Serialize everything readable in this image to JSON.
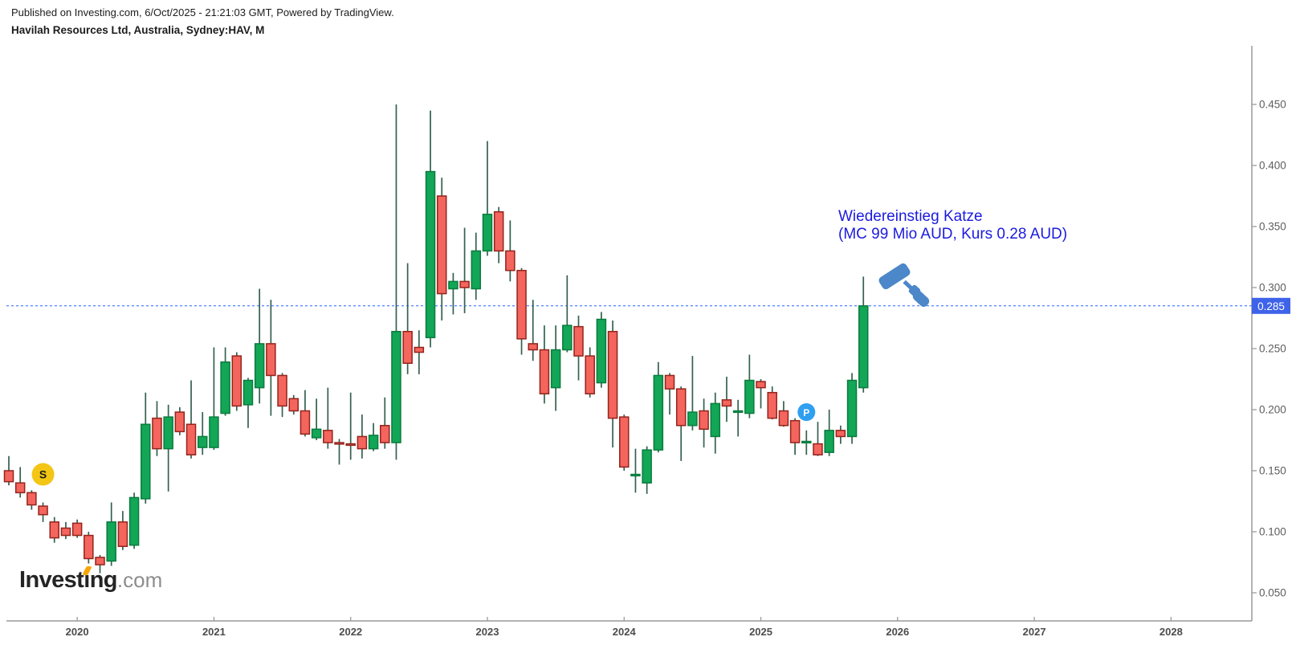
{
  "header": {
    "published_line": "Published on Investing.com, 6/Oct/2025 - 21:21:03 GMT, Powered by TradingView.",
    "instrument_line": "Havilah Resources Ltd, Australia, Sydney:HAV, M"
  },
  "logo": {
    "part1": "Invest",
    "dotless_i": "ı",
    "part2": "ng",
    "suffix": ".com",
    "accent_color": "#f7a600"
  },
  "annotation": {
    "line1": "Wiedereinstieg Katze",
    "line2": "(MC 99 Mio AUD, Kurs 0.28 AUD)",
    "color": "#1b1be0",
    "gavel_icon_color": "#4b87c9"
  },
  "price_line": {
    "value": "0.285",
    "price": 0.285,
    "line_color": "#2962ff",
    "label_bg": "#3e63e9",
    "label_fg": "#ffffff"
  },
  "markers": [
    {
      "label": "S",
      "month": "2019-10",
      "price": 0.147,
      "bg": "#f3c515",
      "fg": "#1c1c1c",
      "r": 14
    },
    {
      "label": "P",
      "month": "2025-05",
      "price": 0.198,
      "bg": "#2f9ff0",
      "fg": "#ffffff",
      "r": 11
    }
  ],
  "axes": {
    "price_ticks": [
      "0.450",
      "0.400",
      "0.350",
      "0.300",
      "0.250",
      "0.200",
      "0.150",
      "0.100",
      "0.050"
    ],
    "years": [
      "2020",
      "2021",
      "2022",
      "2023",
      "2024",
      "2025",
      "2026",
      "2027",
      "2028"
    ],
    "tick_color": "#5e5e5e",
    "year_color": "#4c4c4c",
    "axis_line_color": "#9a9a9a"
  },
  "chart_data": {
    "type": "candlestick",
    "title": "Havilah Resources Ltd",
    "symbol": "Sydney:HAV",
    "interval": "M",
    "currency": "AUD",
    "ylim": [
      0.027,
      0.496
    ],
    "xrange": [
      "2019-07",
      "2028-12"
    ],
    "grid": false,
    "last_close": 0.285,
    "colors": {
      "up_fill": "#12a656",
      "up_border": "#0a7c3f",
      "down_fill": "#f4655d",
      "down_border": "#93241c",
      "wick": "#34614f"
    },
    "candles": [
      {
        "t": "2019-07",
        "o": 0.15,
        "h": 0.162,
        "l": 0.138,
        "c": 0.141
      },
      {
        "t": "2019-08",
        "o": 0.14,
        "h": 0.153,
        "l": 0.128,
        "c": 0.132
      },
      {
        "t": "2019-09",
        "o": 0.132,
        "h": 0.134,
        "l": 0.118,
        "c": 0.122
      },
      {
        "t": "2019-10",
        "o": 0.121,
        "h": 0.124,
        "l": 0.108,
        "c": 0.114
      },
      {
        "t": "2019-11",
        "o": 0.108,
        "h": 0.112,
        "l": 0.091,
        "c": 0.095
      },
      {
        "t": "2019-12",
        "o": 0.103,
        "h": 0.108,
        "l": 0.094,
        "c": 0.097
      },
      {
        "t": "2020-01",
        "o": 0.107,
        "h": 0.11,
        "l": 0.095,
        "c": 0.097
      },
      {
        "t": "2020-02",
        "o": 0.097,
        "h": 0.1,
        "l": 0.074,
        "c": 0.078
      },
      {
        "t": "2020-03",
        "o": 0.079,
        "h": 0.081,
        "l": 0.066,
        "c": 0.073
      },
      {
        "t": "2020-04",
        "o": 0.076,
        "h": 0.124,
        "l": 0.072,
        "c": 0.108
      },
      {
        "t": "2020-05",
        "o": 0.108,
        "h": 0.117,
        "l": 0.085,
        "c": 0.088
      },
      {
        "t": "2020-06",
        "o": 0.089,
        "h": 0.132,
        "l": 0.086,
        "c": 0.128
      },
      {
        "t": "2020-07",
        "o": 0.127,
        "h": 0.214,
        "l": 0.123,
        "c": 0.188
      },
      {
        "t": "2020-08",
        "o": 0.193,
        "h": 0.207,
        "l": 0.162,
        "c": 0.168
      },
      {
        "t": "2020-09",
        "o": 0.168,
        "h": 0.204,
        "l": 0.133,
        "c": 0.194
      },
      {
        "t": "2020-10",
        "o": 0.198,
        "h": 0.202,
        "l": 0.179,
        "c": 0.182
      },
      {
        "t": "2020-11",
        "o": 0.188,
        "h": 0.224,
        "l": 0.16,
        "c": 0.163
      },
      {
        "t": "2020-12",
        "o": 0.169,
        "h": 0.198,
        "l": 0.163,
        "c": 0.178
      },
      {
        "t": "2021-01",
        "o": 0.169,
        "h": 0.251,
        "l": 0.167,
        "c": 0.194
      },
      {
        "t": "2021-02",
        "o": 0.197,
        "h": 0.251,
        "l": 0.195,
        "c": 0.239
      },
      {
        "t": "2021-03",
        "o": 0.244,
        "h": 0.247,
        "l": 0.199,
        "c": 0.203
      },
      {
        "t": "2021-04",
        "o": 0.204,
        "h": 0.226,
        "l": 0.185,
        "c": 0.224
      },
      {
        "t": "2021-05",
        "o": 0.218,
        "h": 0.299,
        "l": 0.205,
        "c": 0.254
      },
      {
        "t": "2021-06",
        "o": 0.254,
        "h": 0.29,
        "l": 0.195,
        "c": 0.228
      },
      {
        "t": "2021-07",
        "o": 0.228,
        "h": 0.23,
        "l": 0.194,
        "c": 0.203
      },
      {
        "t": "2021-08",
        "o": 0.209,
        "h": 0.212,
        "l": 0.196,
        "c": 0.199
      },
      {
        "t": "2021-09",
        "o": 0.199,
        "h": 0.216,
        "l": 0.178,
        "c": 0.18
      },
      {
        "t": "2021-10",
        "o": 0.177,
        "h": 0.209,
        "l": 0.175,
        "c": 0.184
      },
      {
        "t": "2021-11",
        "o": 0.183,
        "h": 0.218,
        "l": 0.168,
        "c": 0.173
      },
      {
        "t": "2021-12",
        "o": 0.173,
        "h": 0.176,
        "l": 0.155,
        "c": 0.172
      },
      {
        "t": "2022-01",
        "o": 0.172,
        "h": 0.214,
        "l": 0.159,
        "c": 0.171
      },
      {
        "t": "2022-02",
        "o": 0.178,
        "h": 0.196,
        "l": 0.16,
        "c": 0.168
      },
      {
        "t": "2022-03",
        "o": 0.168,
        "h": 0.189,
        "l": 0.166,
        "c": 0.179
      },
      {
        "t": "2022-04",
        "o": 0.187,
        "h": 0.21,
        "l": 0.168,
        "c": 0.173
      },
      {
        "t": "2022-05",
        "o": 0.173,
        "h": 0.45,
        "l": 0.159,
        "c": 0.264
      },
      {
        "t": "2022-06",
        "o": 0.264,
        "h": 0.32,
        "l": 0.229,
        "c": 0.238
      },
      {
        "t": "2022-07",
        "o": 0.251,
        "h": 0.265,
        "l": 0.229,
        "c": 0.247
      },
      {
        "t": "2022-08",
        "o": 0.259,
        "h": 0.445,
        "l": 0.251,
        "c": 0.395
      },
      {
        "t": "2022-09",
        "o": 0.375,
        "h": 0.39,
        "l": 0.273,
        "c": 0.295
      },
      {
        "t": "2022-10",
        "o": 0.299,
        "h": 0.312,
        "l": 0.278,
        "c": 0.305
      },
      {
        "t": "2022-11",
        "o": 0.305,
        "h": 0.349,
        "l": 0.279,
        "c": 0.3
      },
      {
        "t": "2022-12",
        "o": 0.299,
        "h": 0.345,
        "l": 0.29,
        "c": 0.33
      },
      {
        "t": "2023-01",
        "o": 0.33,
        "h": 0.42,
        "l": 0.326,
        "c": 0.36
      },
      {
        "t": "2023-02",
        "o": 0.362,
        "h": 0.366,
        "l": 0.32,
        "c": 0.33
      },
      {
        "t": "2023-03",
        "o": 0.33,
        "h": 0.355,
        "l": 0.305,
        "c": 0.314
      },
      {
        "t": "2023-04",
        "o": 0.314,
        "h": 0.316,
        "l": 0.245,
        "c": 0.258
      },
      {
        "t": "2023-05",
        "o": 0.254,
        "h": 0.29,
        "l": 0.24,
        "c": 0.249
      },
      {
        "t": "2023-06",
        "o": 0.249,
        "h": 0.269,
        "l": 0.205,
        "c": 0.213
      },
      {
        "t": "2023-07",
        "o": 0.218,
        "h": 0.269,
        "l": 0.199,
        "c": 0.249
      },
      {
        "t": "2023-08",
        "o": 0.249,
        "h": 0.31,
        "l": 0.247,
        "c": 0.269
      },
      {
        "t": "2023-09",
        "o": 0.268,
        "h": 0.277,
        "l": 0.224,
        "c": 0.244
      },
      {
        "t": "2023-10",
        "o": 0.244,
        "h": 0.251,
        "l": 0.21,
        "c": 0.213
      },
      {
        "t": "2023-11",
        "o": 0.222,
        "h": 0.28,
        "l": 0.218,
        "c": 0.274
      },
      {
        "t": "2023-12",
        "o": 0.264,
        "h": 0.273,
        "l": 0.169,
        "c": 0.193
      },
      {
        "t": "2024-01",
        "o": 0.194,
        "h": 0.196,
        "l": 0.15,
        "c": 0.153
      },
      {
        "t": "2024-02",
        "o": 0.147,
        "h": 0.168,
        "l": 0.132,
        "c": 0.147
      },
      {
        "t": "2024-03",
        "o": 0.14,
        "h": 0.17,
        "l": 0.131,
        "c": 0.167
      },
      {
        "t": "2024-04",
        "o": 0.167,
        "h": 0.239,
        "l": 0.165,
        "c": 0.228
      },
      {
        "t": "2024-05",
        "o": 0.228,
        "h": 0.23,
        "l": 0.196,
        "c": 0.217
      },
      {
        "t": "2024-06",
        "o": 0.217,
        "h": 0.219,
        "l": 0.158,
        "c": 0.187
      },
      {
        "t": "2024-07",
        "o": 0.187,
        "h": 0.244,
        "l": 0.183,
        "c": 0.198
      },
      {
        "t": "2024-08",
        "o": 0.199,
        "h": 0.209,
        "l": 0.169,
        "c": 0.184
      },
      {
        "t": "2024-09",
        "o": 0.178,
        "h": 0.214,
        "l": 0.164,
        "c": 0.205
      },
      {
        "t": "2024-10",
        "o": 0.208,
        "h": 0.227,
        "l": 0.19,
        "c": 0.203
      },
      {
        "t": "2024-11",
        "o": 0.198,
        "h": 0.208,
        "l": 0.178,
        "c": 0.199
      },
      {
        "t": "2024-12",
        "o": 0.197,
        "h": 0.245,
        "l": 0.193,
        "c": 0.224
      },
      {
        "t": "2025-01",
        "o": 0.223,
        "h": 0.225,
        "l": 0.201,
        "c": 0.218
      },
      {
        "t": "2025-02",
        "o": 0.214,
        "h": 0.219,
        "l": 0.192,
        "c": 0.193
      },
      {
        "t": "2025-03",
        "o": 0.199,
        "h": 0.207,
        "l": 0.186,
        "c": 0.187
      },
      {
        "t": "2025-04",
        "o": 0.191,
        "h": 0.193,
        "l": 0.163,
        "c": 0.173
      },
      {
        "t": "2025-05",
        "o": 0.174,
        "h": 0.183,
        "l": 0.163,
        "c": 0.174
      },
      {
        "t": "2025-06",
        "o": 0.172,
        "h": 0.19,
        "l": 0.162,
        "c": 0.163
      },
      {
        "t": "2025-07",
        "o": 0.165,
        "h": 0.2,
        "l": 0.162,
        "c": 0.183
      },
      {
        "t": "2025-08",
        "o": 0.183,
        "h": 0.187,
        "l": 0.172,
        "c": 0.178
      },
      {
        "t": "2025-09",
        "o": 0.178,
        "h": 0.23,
        "l": 0.172,
        "c": 0.224
      },
      {
        "t": "2025-10",
        "o": 0.218,
        "h": 0.309,
        "l": 0.214,
        "c": 0.285
      }
    ]
  }
}
